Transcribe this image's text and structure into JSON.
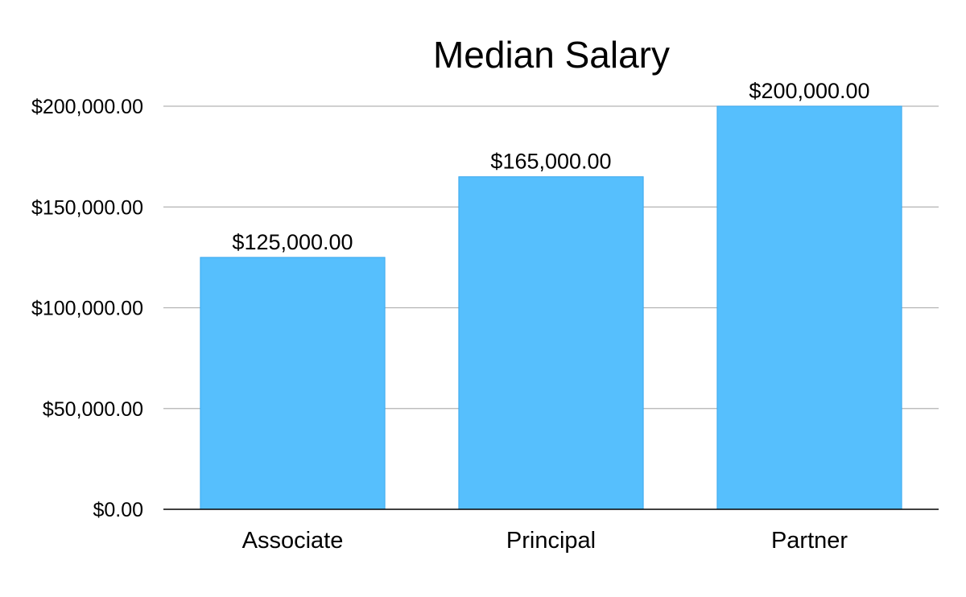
{
  "chart_data": {
    "type": "bar",
    "title": "Median Salary",
    "xlabel": "",
    "ylabel": "",
    "categories": [
      "Associate",
      "Principal",
      "Partner"
    ],
    "values": [
      125000,
      165000,
      200000
    ],
    "value_labels": [
      "$125,000.00",
      "$165,000.00",
      "$200,000.00"
    ],
    "ylim": [
      0,
      200000
    ],
    "yticks": [
      0,
      50000,
      100000,
      150000,
      200000
    ],
    "ytick_labels": [
      "$0.00",
      "$50,000.00",
      "$100,000.00",
      "$150,000.00",
      "$200,000.00"
    ],
    "grid": true,
    "legend": "none",
    "colors": {
      "bar_fill": "#56BFFD",
      "bar_stroke": "#3AA8EE",
      "grid": "#B3B3B3",
      "axis": "#000000"
    }
  }
}
